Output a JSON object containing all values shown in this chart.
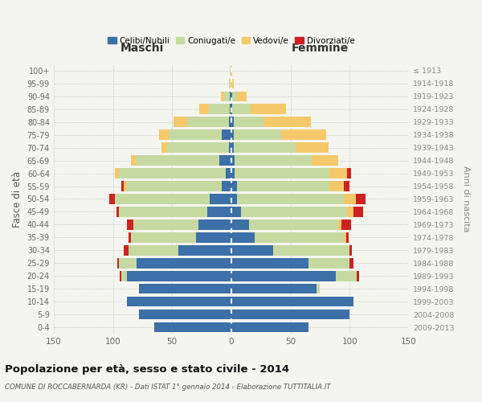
{
  "age_groups": [
    "0-4",
    "5-9",
    "10-14",
    "15-19",
    "20-24",
    "25-29",
    "30-34",
    "35-39",
    "40-44",
    "45-49",
    "50-54",
    "55-59",
    "60-64",
    "65-69",
    "70-74",
    "75-79",
    "80-84",
    "85-89",
    "90-94",
    "95-99",
    "100+"
  ],
  "birth_years": [
    "2009-2013",
    "2004-2008",
    "1999-2003",
    "1994-1998",
    "1989-1993",
    "1984-1988",
    "1979-1983",
    "1974-1978",
    "1969-1973",
    "1964-1968",
    "1959-1963",
    "1954-1958",
    "1949-1953",
    "1944-1948",
    "1939-1943",
    "1934-1938",
    "1929-1933",
    "1924-1928",
    "1919-1923",
    "1914-1918",
    "≤ 1913"
  ],
  "male": {
    "celibi": [
      65,
      78,
      88,
      78,
      88,
      80,
      45,
      30,
      28,
      20,
      18,
      8,
      5,
      10,
      2,
      8,
      2,
      1,
      1,
      0,
      0
    ],
    "coniugati": [
      0,
      0,
      0,
      0,
      5,
      15,
      42,
      55,
      55,
      75,
      80,
      80,
      90,
      70,
      52,
      45,
      35,
      18,
      5,
      1,
      1
    ],
    "vedovi": [
      0,
      0,
      0,
      0,
      0,
      0,
      0,
      0,
      0,
      0,
      0,
      3,
      3,
      5,
      5,
      8,
      12,
      8,
      3,
      1,
      0
    ],
    "divorziati": [
      0,
      0,
      0,
      0,
      1,
      1,
      4,
      2,
      5,
      2,
      5,
      2,
      0,
      0,
      0,
      0,
      0,
      0,
      0,
      0,
      0
    ]
  },
  "female": {
    "nubili": [
      65,
      100,
      103,
      72,
      88,
      65,
      35,
      20,
      15,
      8,
      5,
      5,
      3,
      3,
      2,
      2,
      2,
      1,
      1,
      0,
      0
    ],
    "coniugate": [
      0,
      0,
      0,
      3,
      18,
      35,
      65,
      75,
      75,
      90,
      90,
      78,
      80,
      65,
      52,
      40,
      25,
      15,
      4,
      1,
      0
    ],
    "vedove": [
      0,
      0,
      0,
      0,
      0,
      0,
      0,
      2,
      3,
      5,
      10,
      12,
      15,
      22,
      28,
      38,
      40,
      30,
      8,
      1,
      1
    ],
    "divorziate": [
      0,
      0,
      0,
      0,
      2,
      3,
      2,
      2,
      8,
      8,
      8,
      5,
      3,
      0,
      0,
      0,
      0,
      0,
      0,
      0,
      0
    ]
  },
  "colors": {
    "celibi": "#3d6fa8",
    "coniugati": "#c5d9a0",
    "vedovi": "#f5c96a",
    "divorziati": "#cc2222"
  },
  "title": "Popolazione per età, sesso e stato civile - 2014",
  "subtitle": "COMUNE DI ROCCABERNARDA (KR) - Dati ISTAT 1° gennaio 2014 - Elaborazione TUTTITALIA.IT",
  "xlabel_left": "Maschi",
  "xlabel_right": "Femmine",
  "ylabel_left": "Fasce di età",
  "ylabel_right": "Anni di nascita",
  "xlim": 150,
  "bg_color": "#f5f5f0",
  "plot_bg": "#f5f5f0",
  "grid_color": "#cccccc"
}
